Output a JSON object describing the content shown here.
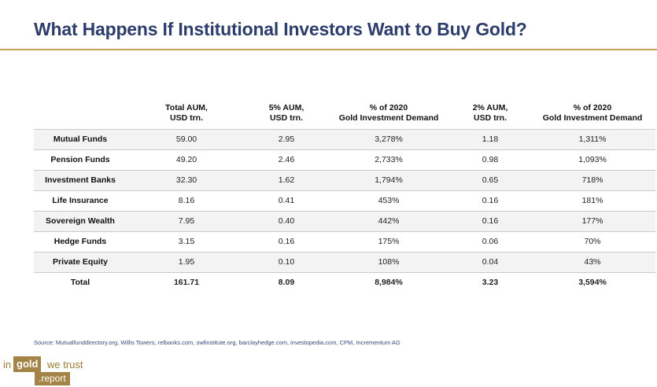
{
  "title": "What Happens If Institutional Investors Want to Buy Gold?",
  "table": {
    "headers": [
      {
        "line1": "",
        "line2": ""
      },
      {
        "line1": "Total AUM,",
        "line2": "USD trn."
      },
      {
        "line1": "5% AUM,",
        "line2": "USD trn."
      },
      {
        "line1": "% of 2020",
        "line2": "Gold Investment Demand"
      },
      {
        "line1": "2% AUM,",
        "line2": "USD trn."
      },
      {
        "line1": "% of 2020",
        "line2": "Gold Investment Demand"
      }
    ],
    "rows": [
      [
        "Mutual Funds",
        "59.00",
        "2.95",
        "3,278%",
        "1.18",
        "1,311%"
      ],
      [
        "Pension Funds",
        "49.20",
        "2.46",
        "2,733%",
        "0.98",
        "1,093%"
      ],
      [
        "Investment Banks",
        "32.30",
        "1.62",
        "1,794%",
        "0.65",
        "718%"
      ],
      [
        "Life Insurance",
        "8.16",
        "0.41",
        "453%",
        "0.16",
        "181%"
      ],
      [
        "Sovereign Wealth",
        "7.95",
        "0.40",
        "442%",
        "0.16",
        "177%"
      ],
      [
        "Hedge Funds",
        "3.15",
        "0.16",
        "175%",
        "0.06",
        "70%"
      ],
      [
        "Private Equity",
        "1.95",
        "0.10",
        "108%",
        "0.04",
        "43%"
      ]
    ],
    "total": [
      "Total",
      "161.71",
      "8.09",
      "8,984%",
      "3.23",
      "3,594%"
    ]
  },
  "source": "Source: Mutualfunddirectory.org, Willis Towers, relbanks.com, swfinstitute.org, barclayhedge.com, investopedia.com, CPM, Incrementum AG",
  "logo": {
    "word1": "in",
    "word2": "gold",
    "word3": "we trust",
    "word4": ".report"
  },
  "colors": {
    "title": "#2d3d6b",
    "accent": "#c4a25a",
    "logo": "#a38446"
  }
}
